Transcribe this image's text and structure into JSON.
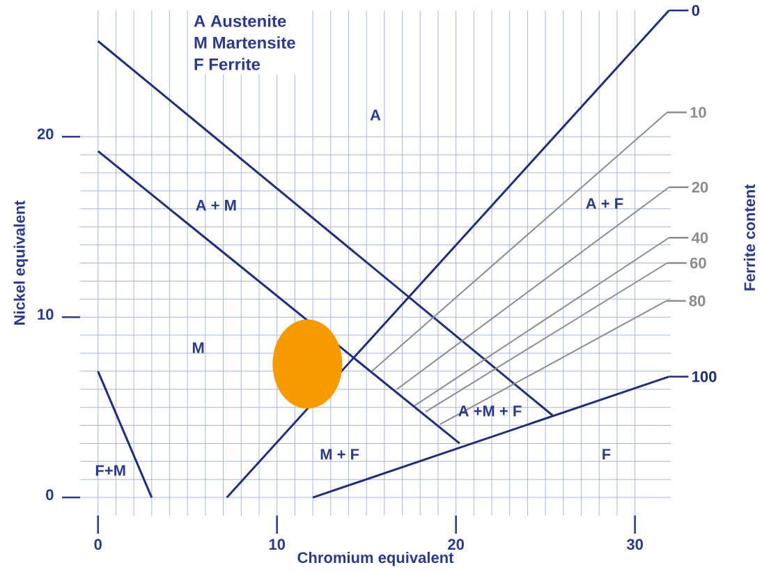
{
  "chart_data": {
    "type": "line",
    "xlabel": "Chromium equivalent",
    "ylabel": "Nickel equivalent",
    "y2label": "Ferrite content",
    "xlim": [
      -1,
      32
    ],
    "ylim": [
      -1,
      27
    ],
    "xticks": [
      0,
      10,
      20,
      30
    ],
    "yticks": [
      0,
      10,
      20
    ],
    "grid": true,
    "series": [
      {
        "color": "#1f2d7b",
        "x": [
          0,
          25.4
        ],
        "values": [
          25.3,
          4.55
        ]
      },
      {
        "color": "#1f2d7b",
        "x": [
          0,
          20.2
        ],
        "values": [
          19.2,
          3.0
        ]
      },
      {
        "name": "0",
        "color": "#1f2d7b",
        "x": [
          7.2,
          31.9
        ],
        "values": [
          0,
          27.0
        ]
      },
      {
        "name": "100",
        "color": "#1f2d7b",
        "x": [
          12.0,
          31.9
        ],
        "values": [
          0,
          6.7
        ]
      },
      {
        "color": "#1f2d7b",
        "x": [
          0,
          3.0
        ],
        "values": [
          7.0,
          0
        ]
      },
      {
        "name": "10",
        "color": "#8c8c8c",
        "x": [
          15.3,
          31.8
        ],
        "values": [
          7.0,
          21.35
        ]
      },
      {
        "name": "20",
        "color": "#8c8c8c",
        "x": [
          16.7,
          31.9
        ],
        "values": [
          6.0,
          17.2
        ]
      },
      {
        "name": "40",
        "color": "#8c8c8c",
        "x": [
          17.7,
          31.9
        ],
        "values": [
          5.1,
          14.4
        ]
      },
      {
        "name": "60",
        "color": "#8c8c8c",
        "x": [
          18.3,
          31.8
        ],
        "values": [
          4.75,
          13.0
        ]
      },
      {
        "name": "80",
        "color": "#8c8c8c",
        "x": [
          19.1,
          31.75
        ],
        "values": [
          4.05,
          10.9
        ]
      }
    ],
    "legend": "right",
    "annotations": [
      "A Austenite",
      "M Martensite",
      "F Ferrite",
      "A",
      "A + M",
      "M",
      "M + F",
      "F+M",
      "A + F",
      "A +M + F",
      "F"
    ]
  }
}
